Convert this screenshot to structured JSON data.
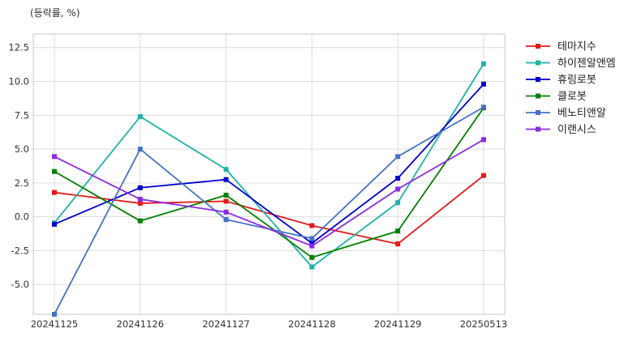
{
  "chart_data": {
    "type": "line",
    "unit_label": "(등락률, %)",
    "x": [
      "20241125",
      "20241126",
      "20241127",
      "20241128",
      "20241129",
      "20250513"
    ],
    "ylim": [
      -7.2,
      13.5
    ],
    "yticks": [
      -5.0,
      -2.5,
      0.0,
      2.5,
      5.0,
      7.5,
      10.0,
      12.5
    ],
    "ytick_labels": [
      "-5.0",
      "-2.5",
      "0.0",
      "2.5",
      "5.0",
      "7.5",
      "10.0",
      "12.5"
    ],
    "grid": true,
    "legend": "outside-right",
    "series": [
      {
        "name": "테마지수",
        "color": "#e31a1c",
        "values": [
          1.8,
          1.0,
          1.15,
          -0.65,
          -2.0,
          3.05
        ]
      },
      {
        "name": "하이젠알앤엠",
        "color": "#20b2aa",
        "values": [
          -0.45,
          7.4,
          3.5,
          -3.7,
          1.05,
          11.3
        ]
      },
      {
        "name": "휴림로봇",
        "color": "#0000cd",
        "values": [
          -0.55,
          2.15,
          2.75,
          -1.95,
          2.85,
          9.8
        ]
      },
      {
        "name": "클로봇",
        "color": "#008000",
        "values": [
          3.35,
          -0.3,
          1.6,
          -3.0,
          -1.05,
          8.05
        ]
      },
      {
        "name": "베노티앤알",
        "color": "#4472c4",
        "values": [
          -7.2,
          5.0,
          -0.2,
          -1.6,
          4.45,
          8.1
        ]
      },
      {
        "name": "이랜시스",
        "color": "#8a2be2",
        "values": [
          4.45,
          1.3,
          0.35,
          -2.15,
          2.05,
          5.7
        ]
      }
    ]
  }
}
